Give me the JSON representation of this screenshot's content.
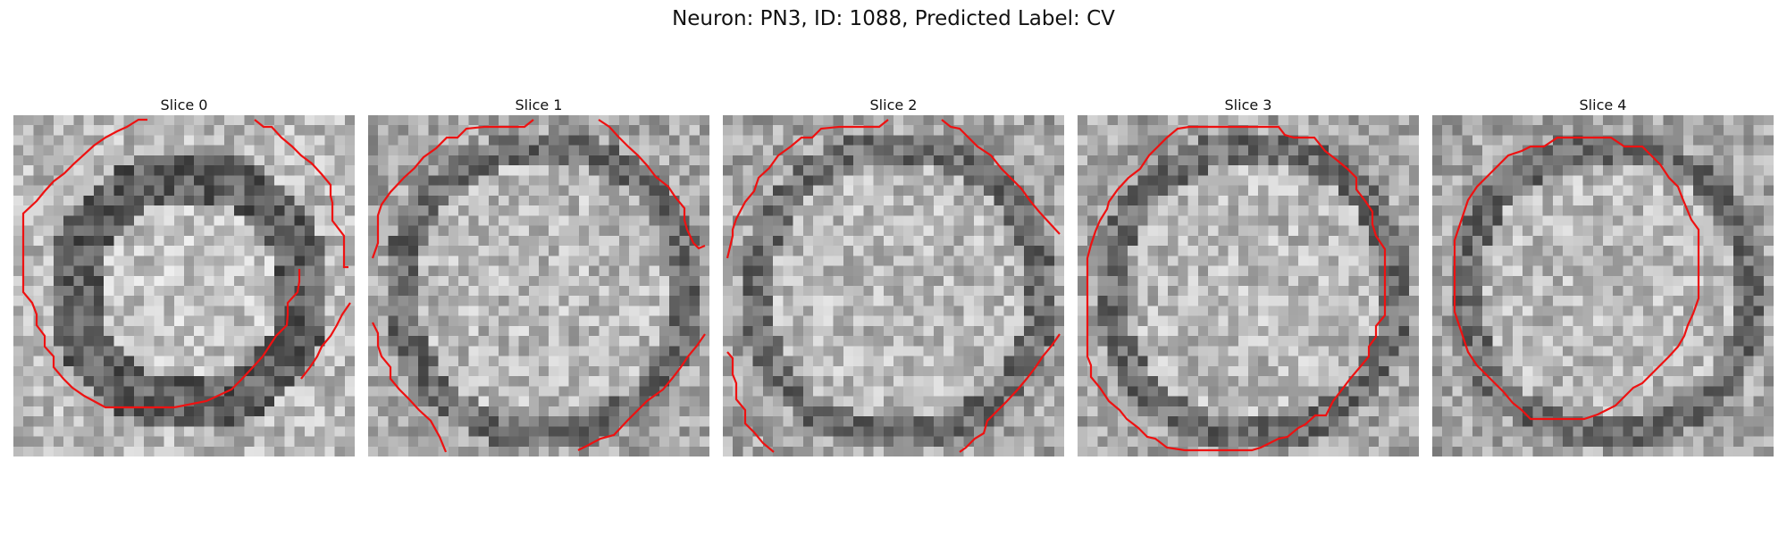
{
  "suptitle": "Neuron: PN3, ID: 1088, Predicted Label: CV",
  "contour_color": "#ee1111",
  "colormap": "gray",
  "slices": [
    {
      "title": "Slice 0",
      "seed": 11,
      "dark_ring": true
    },
    {
      "title": "Slice 1",
      "seed": 23,
      "dark_ring": false
    },
    {
      "title": "Slice 2",
      "seed": 37,
      "dark_ring": false
    },
    {
      "title": "Slice 3",
      "seed": 41,
      "dark_ring": false
    },
    {
      "title": "Slice 4",
      "seed": 53,
      "dark_ring": false
    }
  ]
}
